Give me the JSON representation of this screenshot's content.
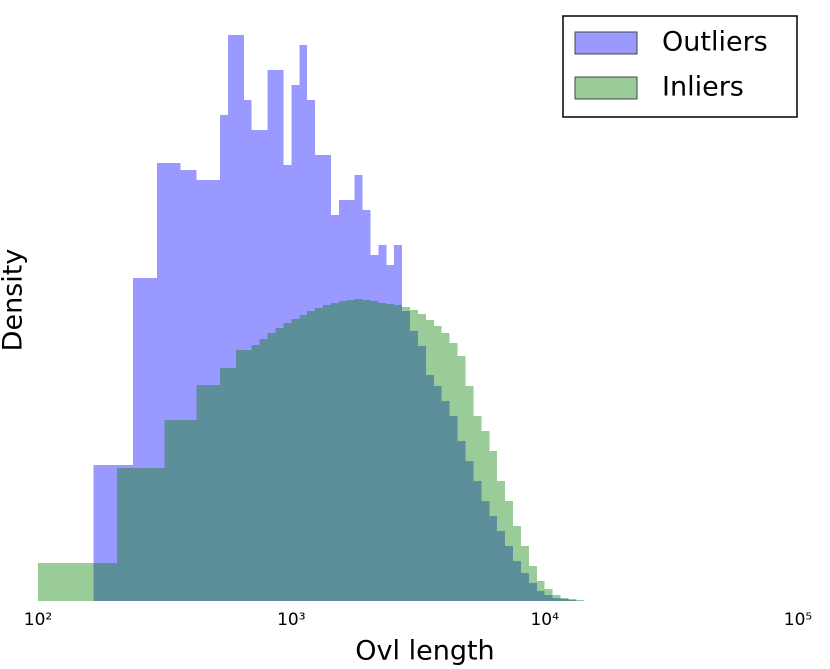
{
  "chart_data": {
    "type": "histogram",
    "xlabel": "Ovl length",
    "ylabel": "Density",
    "xscale": "log",
    "xlim": [
      100,
      100000
    ],
    "xticks": [
      {
        "value": 100,
        "label": "10²"
      },
      {
        "value": 1000,
        "label": "10³"
      },
      {
        "value": 10000,
        "label": "10⁴"
      },
      {
        "value": 100000,
        "label": "10⁵"
      }
    ],
    "ylim": [
      0,
      600
    ],
    "legend": "upper right",
    "alpha": 0.4,
    "bins": [
      100,
      107.5,
      115.5,
      124.1,
      133.4,
      143.3,
      154,
      165.5,
      177.8,
      191.1,
      205.4,
      220.7,
      237.1,
      254.8,
      273.8,
      294.3,
      316.2,
      339.8,
      365.2,
      392.4,
      421.7,
      453.2,
      487,
      523.3,
      562.3,
      604.3,
      649.4,
      697.8,
      749.9,
      805.8,
      866,
      930.6,
      1000,
      1075,
      1155,
      1241,
      1334,
      1433,
      1540,
      1655,
      1778,
      1911,
      2054,
      2207,
      2371,
      2548,
      2738,
      2943,
      3162,
      3398,
      3652,
      3924,
      4217,
      4532,
      4870,
      5233,
      5623,
      6043,
      6494,
      6978,
      7499,
      8058,
      8660,
      9306,
      10000,
      10750,
      11550,
      12410,
      13340,
      14330,
      15400,
      16550,
      17780
    ],
    "series": [
      {
        "name": "Outliers",
        "color": "#0000ff",
        "values": [
          0,
          0,
          0,
          0,
          0,
          0,
          0,
          136,
          136,
          136,
          136,
          136,
          323,
          323,
          323,
          438,
          438,
          438,
          431,
          431,
          421,
          421,
          421,
          486,
          566,
          566,
          501,
          471,
          471,
          531,
          531,
          436,
          516,
          556,
          501,
          446,
          446,
          386,
          401,
          401,
          426,
          391,
          346,
          356,
          336,
          356,
          290,
          270,
          255,
          226,
          215,
          200,
          185,
          160,
          140,
          120,
          100,
          85,
          70,
          55,
          40,
          28,
          18,
          10,
          6,
          3,
          2,
          1,
          0,
          0,
          0,
          0
        ]
      },
      {
        "name": "Inliers",
        "color": "#008000",
        "values": [
          38,
          38,
          38,
          38,
          38,
          38,
          38,
          38,
          38,
          38,
          133,
          133,
          133,
          133,
          133,
          133,
          181,
          181,
          181,
          181,
          216,
          216,
          216,
          233,
          233,
          251,
          251,
          256,
          262,
          268,
          273,
          278,
          282,
          286,
          290,
          293,
          296,
          298,
          300,
          301,
          302,
          301,
          300,
          298,
          297,
          296,
          294,
          291,
          287,
          281,
          275,
          268,
          258,
          245,
          215,
          185,
          170,
          150,
          120,
          100,
          75,
          55,
          35,
          20,
          12,
          6,
          3,
          2,
          1,
          0,
          0,
          0
        ]
      }
    ]
  }
}
